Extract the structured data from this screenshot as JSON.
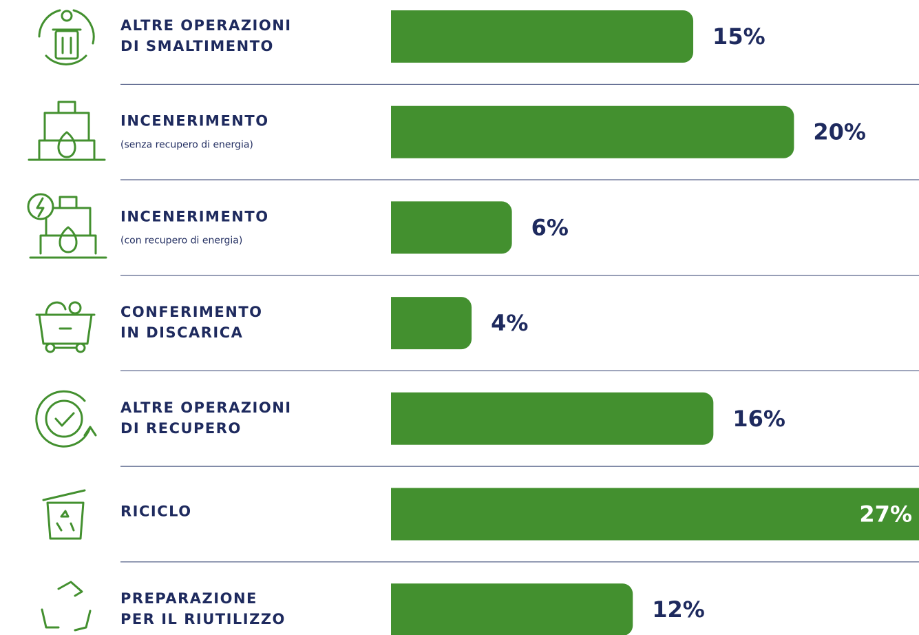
{
  "chart_data": {
    "type": "bar",
    "categories": [
      [
        "ALTRE OPERAZIONI",
        "DI SMALTIMENTO"
      ],
      [
        "INCENERIMENTO"
      ],
      [
        "INCENERIMENTO"
      ],
      [
        "CONFERIMENTO",
        "IN DISCARICA"
      ],
      [
        "ALTRE OPERAZIONI",
        "DI RECUPERO"
      ],
      [
        "RICICLO"
      ],
      [
        "PREPARAZIONE",
        "PER IL RIUTILIZZO"
      ]
    ],
    "sublabels": [
      null,
      "(senza recupero di energia)",
      "(con recupero di energia)",
      null,
      null,
      null,
      null
    ],
    "values": [
      15,
      20,
      6,
      4,
      16,
      27,
      12
    ],
    "value_labels": [
      "15%",
      "20%",
      "6%",
      "4%",
      "16%",
      "27%",
      "12%"
    ],
    "color": "#43902f"
  }
}
